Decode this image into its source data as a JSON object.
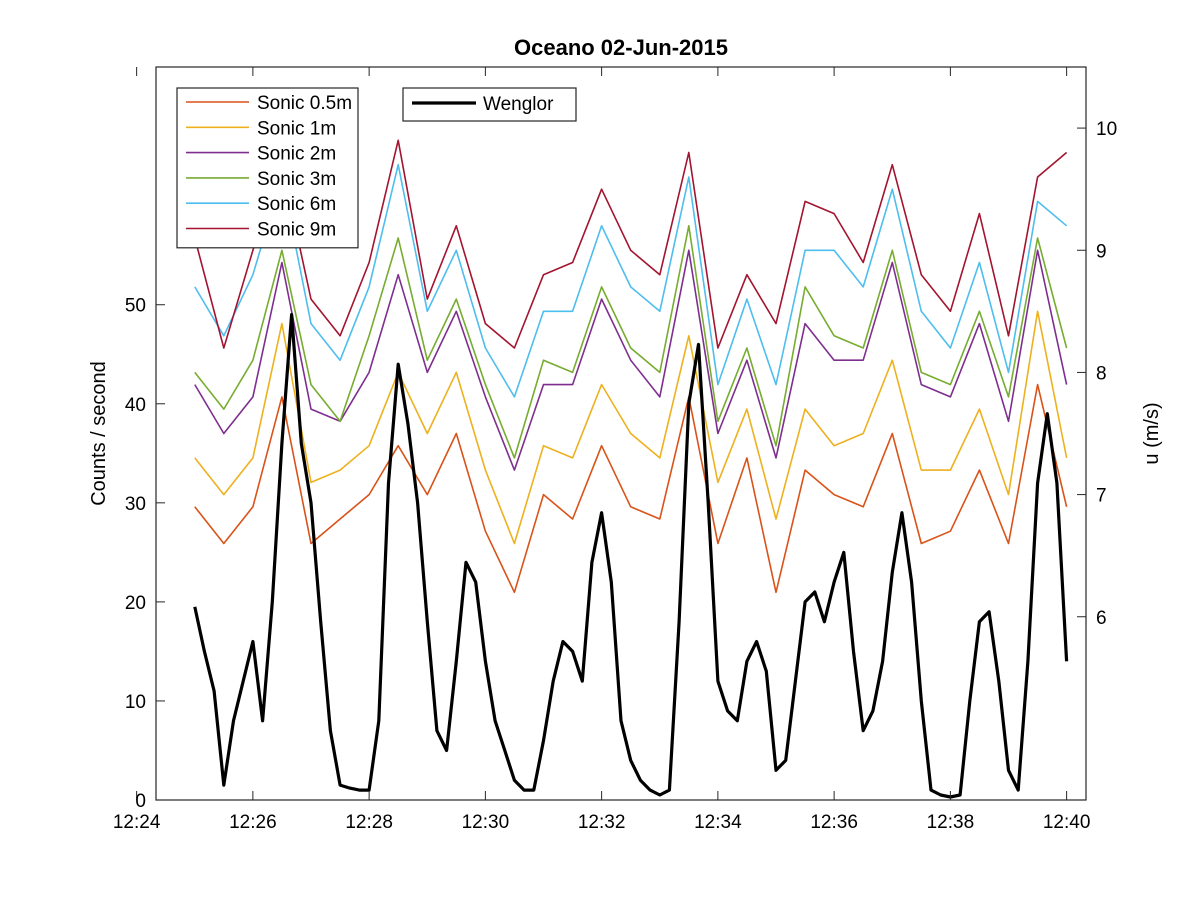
{
  "chart_data": {
    "type": "line",
    "title": "Oceano 02-Jun-2015",
    "xlabel": "",
    "x_ticks": [
      "12:24",
      "12:26",
      "12:28",
      "12:30",
      "12:32",
      "12:34",
      "12:36",
      "12:38",
      "12:40"
    ],
    "xlim": [
      "12:24:20",
      "12:40:20"
    ],
    "left_axis": {
      "label": "Counts / second",
      "ylim": [
        0,
        74
      ],
      "ticks": [
        0,
        10,
        20,
        30,
        40,
        50
      ]
    },
    "right_axis": {
      "label": "u (m/s)",
      "ylim": [
        4.5,
        10.5
      ],
      "ticks": [
        6,
        7,
        8,
        9,
        10
      ]
    },
    "legend_left": [
      "Sonic 0.5m",
      "Sonic 1m",
      "Sonic 2m",
      "Sonic 3m",
      "Sonic 6m",
      "Sonic 9m"
    ],
    "legend_right": [
      "Wenglor"
    ],
    "series_sonic": [
      {
        "name": "Sonic 0.5m",
        "axis": "right",
        "color": "#D95319",
        "x": [
          "12:25:00",
          "12:25:30",
          "12:26:00",
          "12:26:30",
          "12:27:00",
          "12:27:30",
          "12:28:00",
          "12:28:30",
          "12:29:00",
          "12:29:30",
          "12:30:00",
          "12:30:30",
          "12:31:00",
          "12:31:30",
          "12:32:00",
          "12:32:30",
          "12:33:00",
          "12:33:30",
          "12:34:00",
          "12:34:30",
          "12:35:00",
          "12:35:30",
          "12:36:00",
          "12:36:30",
          "12:37:00",
          "12:37:30",
          "12:38:00",
          "12:38:30",
          "12:39:00",
          "12:39:30",
          "12:40:00"
        ],
        "y": [
          6.9,
          6.6,
          6.9,
          7.8,
          6.6,
          6.8,
          7.0,
          7.4,
          7.0,
          7.5,
          6.7,
          6.2,
          7.0,
          6.8,
          7.4,
          6.9,
          6.8,
          7.8,
          6.6,
          7.3,
          6.2,
          7.2,
          7.0,
          6.9,
          7.5,
          6.6,
          6.7,
          7.2,
          6.6,
          7.9,
          6.9
        ]
      },
      {
        "name": "Sonic 1m",
        "axis": "right",
        "color": "#EDB120",
        "x": [
          "12:25:00",
          "12:25:30",
          "12:26:00",
          "12:26:30",
          "12:27:00",
          "12:27:30",
          "12:28:00",
          "12:28:30",
          "12:29:00",
          "12:29:30",
          "12:30:00",
          "12:30:30",
          "12:31:00",
          "12:31:30",
          "12:32:00",
          "12:32:30",
          "12:33:00",
          "12:33:30",
          "12:34:00",
          "12:34:30",
          "12:35:00",
          "12:35:30",
          "12:36:00",
          "12:36:30",
          "12:37:00",
          "12:37:30",
          "12:38:00",
          "12:38:30",
          "12:39:00",
          "12:39:30",
          "12:40:00"
        ],
        "y": [
          7.3,
          7.0,
          7.3,
          8.4,
          7.1,
          7.2,
          7.4,
          8.0,
          7.5,
          8.0,
          7.2,
          6.6,
          7.4,
          7.3,
          7.9,
          7.5,
          7.3,
          8.3,
          7.1,
          7.7,
          6.8,
          7.7,
          7.4,
          7.5,
          8.1,
          7.2,
          7.2,
          7.7,
          7.0,
          8.5,
          7.3
        ]
      },
      {
        "name": "Sonic 2m",
        "axis": "right",
        "color": "#7E2F8E",
        "x": [
          "12:25:00",
          "12:25:30",
          "12:26:00",
          "12:26:30",
          "12:27:00",
          "12:27:30",
          "12:28:00",
          "12:28:30",
          "12:29:00",
          "12:29:30",
          "12:30:00",
          "12:30:30",
          "12:31:00",
          "12:31:30",
          "12:32:00",
          "12:32:30",
          "12:33:00",
          "12:33:30",
          "12:34:00",
          "12:34:30",
          "12:35:00",
          "12:35:30",
          "12:36:00",
          "12:36:30",
          "12:37:00",
          "12:37:30",
          "12:38:00",
          "12:38:30",
          "12:39:00",
          "12:39:30",
          "12:40:00"
        ],
        "y": [
          7.9,
          7.5,
          7.8,
          8.9,
          7.7,
          7.6,
          8.0,
          8.8,
          8.0,
          8.5,
          7.8,
          7.2,
          7.9,
          7.9,
          8.6,
          8.1,
          7.8,
          9.0,
          7.5,
          8.1,
          7.3,
          8.4,
          8.1,
          8.1,
          8.9,
          7.9,
          7.8,
          8.4,
          7.6,
          9.0,
          7.9
        ]
      },
      {
        "name": "Sonic 3m",
        "axis": "right",
        "color": "#77AC30",
        "x": [
          "12:25:00",
          "12:25:30",
          "12:26:00",
          "12:26:30",
          "12:27:00",
          "12:27:30",
          "12:28:00",
          "12:28:30",
          "12:29:00",
          "12:29:30",
          "12:30:00",
          "12:30:30",
          "12:31:00",
          "12:31:30",
          "12:32:00",
          "12:32:30",
          "12:33:00",
          "12:33:30",
          "12:34:00",
          "12:34:30",
          "12:35:00",
          "12:35:30",
          "12:36:00",
          "12:36:30",
          "12:37:00",
          "12:37:30",
          "12:38:00",
          "12:38:30",
          "12:39:00",
          "12:39:30",
          "12:40:00"
        ],
        "y": [
          8.0,
          7.7,
          8.1,
          9.0,
          7.9,
          7.6,
          8.3,
          9.1,
          8.1,
          8.6,
          7.9,
          7.3,
          8.1,
          8.0,
          8.7,
          8.2,
          8.0,
          9.2,
          7.6,
          8.2,
          7.4,
          8.7,
          8.3,
          8.2,
          9.0,
          8.0,
          7.9,
          8.5,
          7.8,
          9.1,
          8.2
        ]
      },
      {
        "name": "Sonic 6m",
        "axis": "right",
        "color": "#4DBEEE",
        "x": [
          "12:25:00",
          "12:25:30",
          "12:26:00",
          "12:26:30",
          "12:27:00",
          "12:27:30",
          "12:28:00",
          "12:28:30",
          "12:29:00",
          "12:29:30",
          "12:30:00",
          "12:30:30",
          "12:31:00",
          "12:31:30",
          "12:32:00",
          "12:32:30",
          "12:33:00",
          "12:33:30",
          "12:34:00",
          "12:34:30",
          "12:35:00",
          "12:35:30",
          "12:36:00",
          "12:36:30",
          "12:37:00",
          "12:37:30",
          "12:38:00",
          "12:38:30",
          "12:39:00",
          "12:39:30",
          "12:40:00"
        ],
        "y": [
          8.7,
          8.3,
          8.8,
          9.6,
          8.4,
          8.1,
          8.7,
          9.7,
          8.5,
          9.0,
          8.2,
          7.8,
          8.5,
          8.5,
          9.2,
          8.7,
          8.5,
          9.6,
          7.9,
          8.6,
          7.9,
          9.0,
          9.0,
          8.7,
          9.5,
          8.5,
          8.2,
          8.9,
          8.0,
          9.4,
          9.2
        ]
      },
      {
        "name": "Sonic 9m",
        "axis": "right",
        "color": "#A2142F",
        "x": [
          "12:25:00",
          "12:25:30",
          "12:26:00",
          "12:26:30",
          "12:27:00",
          "12:27:30",
          "12:28:00",
          "12:28:30",
          "12:29:00",
          "12:29:30",
          "12:30:00",
          "12:30:30",
          "12:31:00",
          "12:31:30",
          "12:32:00",
          "12:32:30",
          "12:33:00",
          "12:33:30",
          "12:34:00",
          "12:34:30",
          "12:35:00",
          "12:35:30",
          "12:36:00",
          "12:36:30",
          "12:37:00",
          "12:37:30",
          "12:38:00",
          "12:38:30",
          "12:39:00",
          "12:39:30",
          "12:40:00"
        ],
        "y": [
          9.1,
          8.2,
          9.0,
          9.7,
          8.6,
          8.3,
          8.9,
          9.9,
          8.6,
          9.2,
          8.4,
          8.2,
          8.8,
          8.9,
          9.5,
          9.0,
          8.8,
          9.8,
          8.2,
          8.8,
          8.4,
          9.4,
          9.3,
          8.9,
          9.7,
          8.8,
          8.5,
          9.3,
          8.3,
          9.6,
          9.8
        ]
      }
    ],
    "series_wenglor": {
      "name": "Wenglor",
      "axis": "left",
      "color": "#000000",
      "x": [
        "12:25:00",
        "12:25:10",
        "12:25:20",
        "12:25:30",
        "12:25:40",
        "12:25:50",
        "12:26:00",
        "12:26:10",
        "12:26:20",
        "12:26:30",
        "12:26:40",
        "12:26:50",
        "12:27:00",
        "12:27:10",
        "12:27:20",
        "12:27:30",
        "12:27:40",
        "12:27:50",
        "12:28:00",
        "12:28:10",
        "12:28:20",
        "12:28:30",
        "12:28:40",
        "12:28:50",
        "12:29:00",
        "12:29:10",
        "12:29:20",
        "12:29:30",
        "12:29:40",
        "12:29:50",
        "12:30:00",
        "12:30:10",
        "12:30:20",
        "12:30:30",
        "12:30:40",
        "12:30:50",
        "12:31:00",
        "12:31:10",
        "12:31:20",
        "12:31:30",
        "12:31:40",
        "12:31:50",
        "12:32:00",
        "12:32:10",
        "12:32:20",
        "12:32:30",
        "12:32:40",
        "12:32:50",
        "12:33:00",
        "12:33:10",
        "12:33:20",
        "12:33:30",
        "12:33:40",
        "12:33:50",
        "12:34:00",
        "12:34:10",
        "12:34:20",
        "12:34:30",
        "12:34:40",
        "12:34:50",
        "12:35:00",
        "12:35:10",
        "12:35:20",
        "12:35:30",
        "12:35:40",
        "12:35:50",
        "12:36:00",
        "12:36:10",
        "12:36:20",
        "12:36:30",
        "12:36:40",
        "12:36:50",
        "12:37:00",
        "12:37:10",
        "12:37:20",
        "12:37:30",
        "12:37:40",
        "12:37:50",
        "12:38:00",
        "12:38:10",
        "12:38:20",
        "12:38:30",
        "12:38:40",
        "12:38:50",
        "12:39:00",
        "12:39:10",
        "12:39:20",
        "12:39:30",
        "12:39:40",
        "12:39:50",
        "12:40:00"
      ],
      "y": [
        19.5,
        15,
        11,
        1.5,
        8,
        12,
        16,
        8,
        20,
        36,
        49,
        36,
        30,
        18,
        7,
        1.5,
        1.2,
        1,
        1,
        8,
        32,
        44,
        38,
        30,
        18,
        7,
        5,
        14,
        24,
        22,
        14,
        8,
        5,
        2,
        1,
        1,
        6,
        12,
        16,
        15,
        12,
        24,
        29,
        22,
        8,
        4,
        2,
        1,
        0.5,
        1,
        18,
        40,
        46,
        30,
        12,
        9,
        8,
        14,
        16,
        13,
        3,
        4,
        12,
        20,
        21,
        18,
        22,
        25,
        15,
        7,
        9,
        14,
        23,
        29,
        22,
        10,
        1,
        0.5,
        0.3,
        0.5,
        10,
        18,
        19,
        12,
        3,
        1,
        14,
        32,
        39,
        32,
        14
      ]
    }
  }
}
